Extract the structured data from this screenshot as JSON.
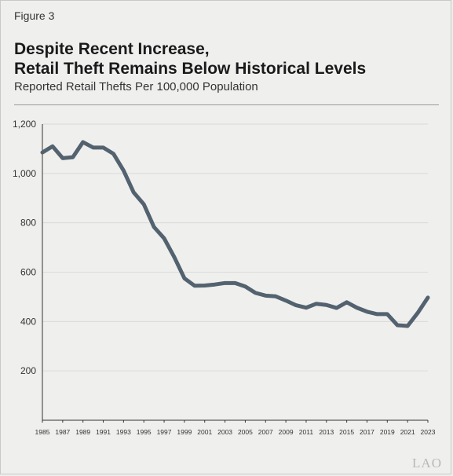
{
  "figure_label": "Figure 3",
  "title_lines": [
    "Despite Recent Increase,",
    "Retail Theft Remains Below Historical Levels"
  ],
  "subtitle": "Reported Retail Thefts Per 100,000 Population",
  "watermark": "LAO",
  "colors": {
    "line": "#53626f",
    "background": "#efefee",
    "grid": "#dadad8",
    "axis": "#333333"
  },
  "chart_data": {
    "type": "line",
    "title": "Despite Recent Increase, Retail Theft Remains Below Historical Levels",
    "subtitle": "Reported Retail Thefts Per 100,000 Population",
    "xlabel": "",
    "ylabel": "",
    "ylim": [
      0,
      1200
    ],
    "yticks": [
      200,
      400,
      600,
      800,
      1000,
      1200
    ],
    "ytick_labels": [
      "200",
      "400",
      "600",
      "800",
      "1,000",
      "1,200"
    ],
    "xlim": [
      1985,
      2023
    ],
    "xtick_labels": [
      "1985",
      "1987",
      "1989",
      "1991",
      "1993",
      "1995",
      "1997",
      "1999",
      "2001",
      "2003",
      "2005",
      "2007",
      "2009",
      "2011",
      "2013",
      "2015",
      "2017",
      "2019",
      "2021",
      "2023"
    ],
    "grid": true,
    "legend": "none",
    "series": [
      {
        "x": [
          1985,
          1986,
          1987,
          1988,
          1989,
          1990,
          1991,
          1992,
          1993,
          1994,
          1995,
          1996,
          1997,
          1998,
          1999,
          2000,
          2001,
          2002,
          2003,
          2004,
          2005,
          2006,
          2007,
          2008,
          2009,
          2010,
          2011,
          2012,
          2013,
          2014,
          2015,
          2016,
          2017,
          2018,
          2019,
          2020,
          2021,
          2022,
          2023
        ],
        "values": [
          1085,
          1110,
          1062,
          1066,
          1127,
          1105,
          1105,
          1080,
          1012,
          923,
          875,
          783,
          737,
          661,
          575,
          545,
          546,
          550,
          556,
          556,
          542,
          516,
          505,
          502,
          485,
          466,
          456,
          472,
          467,
          455,
          478,
          456,
          440,
          430,
          430,
          385,
          382,
          435,
          497
        ]
      }
    ]
  }
}
